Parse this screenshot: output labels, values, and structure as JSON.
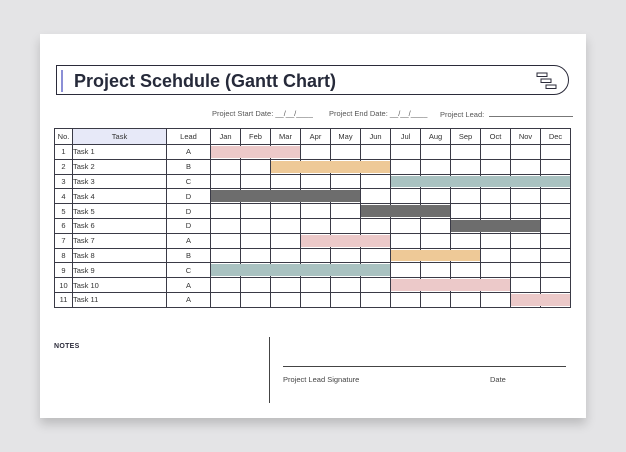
{
  "title": "Project Scehdule (Gantt Chart)",
  "meta": {
    "start_label": "Project Start Date: __/__/____",
    "end_label": "Project End Date: __/__/____",
    "lead_label": "Project Lead:"
  },
  "headers": {
    "no": "No.",
    "task": "Task",
    "lead": "Lead",
    "months": [
      "Jan",
      "Feb",
      "Mar",
      "Apr",
      "May",
      "Jun",
      "Jul",
      "Aug",
      "Sep",
      "Oct",
      "Nov",
      "Dec"
    ]
  },
  "colors": {
    "pink": "#ecc9c9",
    "orange": "#eec997",
    "teal": "#a9c2c1",
    "gray": "#6d6d6d"
  },
  "chart_data": {
    "type": "gantt",
    "rows": [
      {
        "no": "1",
        "task": "Task 1",
        "lead": "A",
        "start": 1,
        "end": 3,
        "color": "pink"
      },
      {
        "no": "2",
        "task": "Task 2",
        "lead": "B",
        "start": 3,
        "end": 6,
        "color": "orange"
      },
      {
        "no": "3",
        "task": "Task 3",
        "lead": "C",
        "start": 7,
        "end": 12,
        "color": "teal"
      },
      {
        "no": "4",
        "task": "Task 4",
        "lead": "D",
        "start": 1,
        "end": 5,
        "color": "gray"
      },
      {
        "no": "5",
        "task": "Task 5",
        "lead": "D",
        "start": 6,
        "end": 8,
        "color": "gray"
      },
      {
        "no": "6",
        "task": "Task 6",
        "lead": "D",
        "start": 9,
        "end": 11,
        "color": "gray"
      },
      {
        "no": "7",
        "task": "Task 7",
        "lead": "A",
        "start": 4,
        "end": 6,
        "color": "pink"
      },
      {
        "no": "8",
        "task": "Task 8",
        "lead": "B",
        "start": 7,
        "end": 9,
        "color": "orange"
      },
      {
        "no": "9",
        "task": "Task 9",
        "lead": "C",
        "start": 1,
        "end": 6,
        "color": "teal"
      },
      {
        "no": "10",
        "task": "Task 10",
        "lead": "A",
        "start": 7,
        "end": 10,
        "color": "pink"
      },
      {
        "no": "11",
        "task": "Task 11",
        "lead": "A",
        "start": 11,
        "end": 12,
        "color": "pink"
      }
    ]
  },
  "footer": {
    "notes": "NOTES",
    "signature": "Project Lead Signature",
    "date": "Date"
  }
}
